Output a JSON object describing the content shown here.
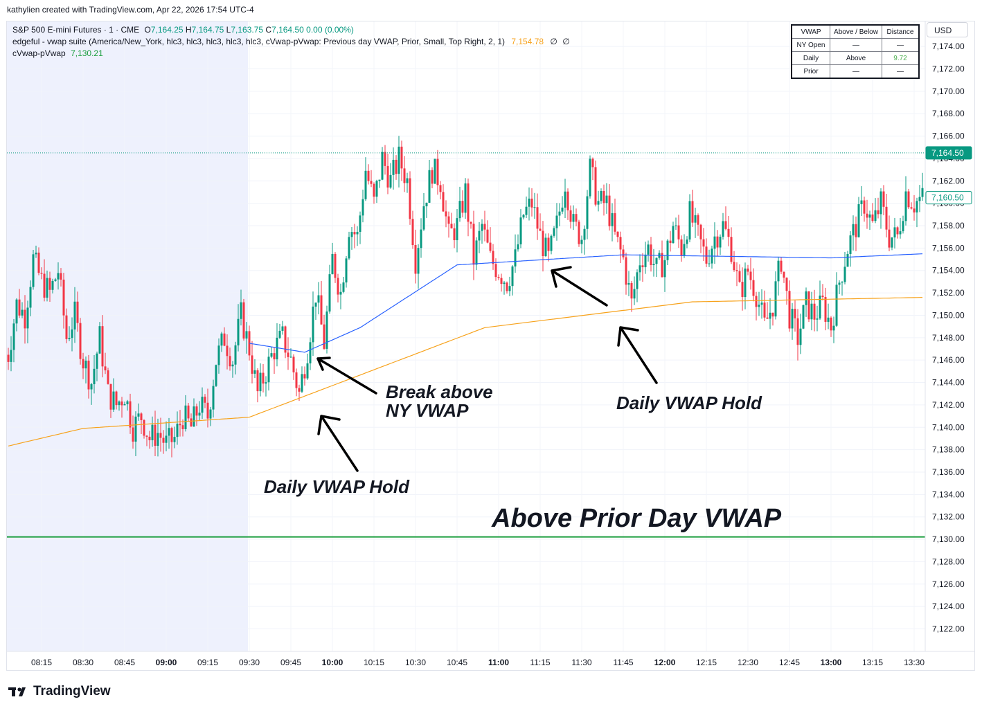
{
  "header": {
    "credit": "kathylien created with TradingView.com, Apr 22, 2026 17:54 UTC-4"
  },
  "legend": {
    "symbol": "S&P 500 E-mini Futures · 1 · CME",
    "o_label": "O",
    "o": "7,164.25",
    "h_label": "H",
    "h": "7,164.75",
    "l_label": "L",
    "l": "7,163.75",
    "c_label": "C",
    "c": "7,164.50",
    "change": "0.00 (0.00%)",
    "indicator": "edgeful - vwap suite (America/New_York, hlc3, hlc3, hlc3, hlc3, hlc3, cVwap-pVwap: Previous day VWAP, Prior, Small, Top Right, 2, 1)",
    "indicator_value": "7,154.78",
    "null_a": "∅",
    "null_b": "∅",
    "series2_name": "cVwap-pVwap",
    "series2_value": "7,130.21"
  },
  "currency": "USD",
  "vwap_table": {
    "headers": [
      "VWAP",
      "Above / Below",
      "Distance"
    ],
    "rows": [
      {
        "name": "NY Open",
        "status": "—",
        "distance": "—"
      },
      {
        "name": "Daily",
        "status": "Above",
        "distance": "9.72"
      },
      {
        "name": "Prior",
        "status": "—",
        "distance": "—"
      }
    ]
  },
  "annotations": {
    "break_line1": "Break above",
    "break_line2": "NY VWAP",
    "daily_hold_1": "Daily VWAP Hold",
    "daily_hold_2": "Daily VWAP Hold",
    "above_prior": "Above Prior Day VWAP"
  },
  "footer": {
    "brand": "TradingView"
  },
  "colors": {
    "up": "#089981",
    "down": "#f23645",
    "ny_vwap": "#2962ff",
    "daily_vwap": "#f7a21b",
    "prior_vwap": "#1b9e3e",
    "premarket_shade": "#eef1fd"
  },
  "chart_data": {
    "type": "candlestick",
    "ylim": [
      7120,
      7175
    ],
    "yticks": [
      7122,
      7124,
      7126,
      7128,
      7130,
      7132,
      7134,
      7136,
      7138,
      7140,
      7142,
      7144,
      7146,
      7148,
      7150,
      7152,
      7154,
      7156,
      7158,
      7160,
      7162,
      7164,
      7166,
      7168,
      7170,
      7172,
      7174
    ],
    "ytick_labels": [
      "7,122.00",
      "7,124.00",
      "7,126.00",
      "7,128.00",
      "7,130.00",
      "7,132.00",
      "7,134.00",
      "7,136.00",
      "7,138.00",
      "7,140.00",
      "7,142.00",
      "7,144.00",
      "7,146.00",
      "7,148.00",
      "7,150.00",
      "7,152.00",
      "7,154.00",
      "7,156.00",
      "7,158.00",
      "7,160.00",
      "7,162.00",
      "7,164.00",
      "7,166.00",
      "7,168.00",
      "7,170.00",
      "7,172.00",
      "7,174.00"
    ],
    "xtick_labels": [
      "08:15",
      "08:30",
      "08:45",
      "09:00",
      "09:15",
      "09:30",
      "09:45",
      "10:00",
      "10:15",
      "10:30",
      "10:45",
      "11:00",
      "11:15",
      "11:30",
      "11:45",
      "12:00",
      "12:15",
      "12:30",
      "12:45",
      "13:00",
      "13:15",
      "13:30"
    ],
    "xtick_bold": [
      "09:00",
      "10:00",
      "11:00",
      "12:00",
      "13:00"
    ],
    "price_labels": [
      {
        "value": 7164.5,
        "label": "7,164.50",
        "style": "filled",
        "color": "#089981"
      },
      {
        "value": 7160.5,
        "label": "7,160.50",
        "style": "outline",
        "color": "#089981"
      }
    ],
    "prior_vwap_level": 7130.21,
    "premarket_end": "09:30",
    "ohlc_anchor_close": [
      [
        "08:03",
        7146.5
      ],
      [
        "08:06",
        7151
      ],
      [
        "08:09",
        7150
      ],
      [
        "08:12",
        7155
      ],
      [
        "08:15",
        7153
      ],
      [
        "08:18",
        7152
      ],
      [
        "08:21",
        7154
      ],
      [
        "08:24",
        7148
      ],
      [
        "08:27",
        7150
      ],
      [
        "08:30",
        7146
      ],
      [
        "08:33",
        7144
      ],
      [
        "08:36",
        7148
      ],
      [
        "08:39",
        7143
      ],
      [
        "08:42",
        7142
      ],
      [
        "08:45",
        7143
      ],
      [
        "08:48",
        7140
      ],
      [
        "08:51",
        7141
      ],
      [
        "08:54",
        7139
      ],
      [
        "08:57",
        7139.5
      ],
      [
        "09:00",
        7138.5
      ],
      [
        "09:03",
        7139
      ],
      [
        "09:06",
        7141
      ],
      [
        "09:09",
        7140
      ],
      [
        "09:12",
        7142
      ],
      [
        "09:15",
        7141
      ],
      [
        "09:18",
        7146
      ],
      [
        "09:21",
        7148
      ],
      [
        "09:24",
        7146
      ],
      [
        "09:27",
        7150
      ],
      [
        "09:30",
        7147
      ],
      [
        "09:33",
        7143
      ],
      [
        "09:36",
        7145
      ],
      [
        "09:39",
        7147
      ],
      [
        "09:42",
        7148
      ],
      [
        "09:45",
        7146
      ],
      [
        "09:48",
        7143
      ],
      [
        "09:51",
        7147
      ],
      [
        "09:54",
        7152
      ],
      [
        "09:57",
        7147.5
      ],
      [
        "10:00",
        7155
      ],
      [
        "10:03",
        7152
      ],
      [
        "10:06",
        7158
      ],
      [
        "10:09",
        7157
      ],
      [
        "10:12",
        7163
      ],
      [
        "10:15",
        7160
      ],
      [
        "10:18",
        7164
      ],
      [
        "10:21",
        7162
      ],
      [
        "10:24",
        7164
      ],
      [
        "10:27",
        7162
      ],
      [
        "10:30",
        7155
      ],
      [
        "10:33",
        7160
      ],
      [
        "10:36",
        7163
      ],
      [
        "10:39",
        7162
      ],
      [
        "10:42",
        7157
      ],
      [
        "10:45",
        7158
      ],
      [
        "10:48",
        7161
      ],
      [
        "10:51",
        7155
      ],
      [
        "10:54",
        7158
      ],
      [
        "10:57",
        7155
      ],
      [
        "11:00",
        7154
      ],
      [
        "11:03",
        7153
      ],
      [
        "11:06",
        7155
      ],
      [
        "11:09",
        7159
      ],
      [
        "11:12",
        7160
      ],
      [
        "11:15",
        7157
      ],
      [
        "11:18",
        7155
      ],
      [
        "11:21",
        7158
      ],
      [
        "11:24",
        7162
      ],
      [
        "11:27",
        7158
      ],
      [
        "11:30",
        7157
      ],
      [
        "11:33",
        7163
      ],
      [
        "11:36",
        7160
      ],
      [
        "11:39",
        7160
      ],
      [
        "11:42",
        7157
      ],
      [
        "11:45",
        7155
      ],
      [
        "11:48",
        7151
      ],
      [
        "11:51",
        7155
      ],
      [
        "11:54",
        7156
      ],
      [
        "11:57",
        7154
      ],
      [
        "12:00",
        7155
      ],
      [
        "12:03",
        7158
      ],
      [
        "12:06",
        7156
      ],
      [
        "12:09",
        7159
      ],
      [
        "12:12",
        7157
      ],
      [
        "12:15",
        7155
      ],
      [
        "12:18",
        7157
      ],
      [
        "12:21",
        7158
      ],
      [
        "12:24",
        7156
      ],
      [
        "12:27",
        7152
      ],
      [
        "12:30",
        7154
      ],
      [
        "12:33",
        7152
      ],
      [
        "12:36",
        7149
      ],
      [
        "12:39",
        7151
      ],
      [
        "12:42",
        7155
      ],
      [
        "12:45",
        7150
      ],
      [
        "12:48",
        7148
      ],
      [
        "12:51",
        7151
      ],
      [
        "12:54",
        7150
      ],
      [
        "12:57",
        7151
      ],
      [
        "13:00",
        7149
      ],
      [
        "13:03",
        7153
      ],
      [
        "13:06",
        7156
      ],
      [
        "13:09",
        7158
      ],
      [
        "13:12",
        7160
      ],
      [
        "13:15",
        7158
      ],
      [
        "13:18",
        7160
      ],
      [
        "13:21",
        7157
      ],
      [
        "13:24",
        7157
      ],
      [
        "13:27",
        7161
      ],
      [
        "13:30",
        7160
      ],
      [
        "13:33",
        7160.5
      ]
    ],
    "series": [
      {
        "name": "cVwap-pVwap",
        "level": 7130.21
      }
    ]
  }
}
